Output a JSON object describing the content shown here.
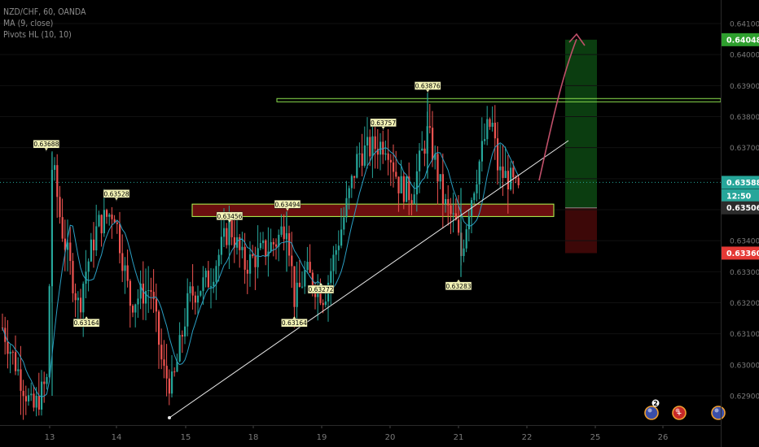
{
  "header": {
    "symbol_line": "NZD/CHF, 60, OANDA",
    "indicator_ma": "MA (9, close)",
    "indicator_pivots": "Pivots HL (10, 10)"
  },
  "colors": {
    "background": "#000000",
    "bull_candle": "#26a69a",
    "bear_candle": "#ef5350",
    "ma_line": "#2a9fc4",
    "trendline": "#e6e6e6",
    "resistance_line": "#8be04e",
    "zone_fill": "#6b0f0f",
    "zone_border": "#b6ff52",
    "target_zone": "#0b3d10",
    "stop_zone": "#3d0808",
    "arrow": "#c0506a",
    "current_price_tag": "#26a69a",
    "target_price_tag": "#2e9f2e",
    "stop_price_tag": "#e53935",
    "entry_price_tag": "#2c2c2c"
  },
  "chart_data": {
    "type": "candlestick",
    "title": "NZD/CHF, 60, OANDA",
    "y_axis": {
      "range": [
        0.6283,
        0.6414
      ],
      "ticks": [
        0.641,
        0.64,
        0.639,
        0.638,
        0.637,
        0.636,
        0.635,
        0.634,
        0.633,
        0.632,
        0.631,
        0.63,
        0.629
      ],
      "tick_labels": [
        "0.64100",
        "0.64000",
        "0.63900",
        "0.63800",
        "0.63700",
        "0.63600",
        "0.63500",
        "0.63400",
        "0.63300",
        "0.63200",
        "0.63100",
        "0.63000",
        "0.62900"
      ]
    },
    "x_axis": {
      "ticks": [
        "13",
        "14",
        "15",
        "18",
        "19",
        "20",
        "21",
        "22",
        "25",
        "26"
      ]
    },
    "price_tags": [
      {
        "name": "target",
        "price": 0.64048,
        "label": "0.64048",
        "color": "#2e9f2e"
      },
      {
        "name": "current",
        "price": 0.63588,
        "label": "0.63588",
        "color": "#26a69a"
      },
      {
        "name": "countdown",
        "price": 0.63545,
        "label": "12:50",
        "color": "#26a69a"
      },
      {
        "name": "entry",
        "price": 0.63506,
        "label": "0.63506",
        "color": "#2c2c2c"
      },
      {
        "name": "stop",
        "price": 0.6336,
        "label": "0.63360",
        "color": "#e53935"
      }
    ],
    "pivot_labels": [
      {
        "label": "0.63688",
        "price": 0.63688,
        "kind": "high",
        "day": 12.95
      },
      {
        "label": "0.63164",
        "price": 0.63164,
        "kind": "low",
        "day": 13.55
      },
      {
        "label": "0.63528",
        "price": 0.63528,
        "kind": "high",
        "day": 14.0
      },
      {
        "label": "0.63456",
        "price": 0.63456,
        "kind": "high",
        "day": 15.65
      },
      {
        "label": "0.63272",
        "price": 0.63272,
        "kind": "low",
        "day": 17.0
      },
      {
        "label": "0.63494",
        "price": 0.63494,
        "kind": "high",
        "day": 18.5
      },
      {
        "label": "0.63164",
        "price": 0.63164,
        "kind": "low",
        "day": 18.6
      },
      {
        "label": "0.63757",
        "price": 0.63757,
        "kind": "high",
        "day": 19.9
      },
      {
        "label": "0.63876",
        "price": 0.63876,
        "kind": "high",
        "day": 20.55
      },
      {
        "label": "0.63283",
        "price": 0.63283,
        "kind": "low",
        "day": 21.0
      }
    ],
    "annotations": {
      "resistance_price": 0.63853,
      "zone_prices": [
        0.63478,
        0.63518
      ],
      "target_price": 0.64048,
      "entry_price": 0.63506,
      "stop_price": 0.6336
    },
    "markers": [
      {
        "label": "2",
        "kind": "event",
        "color": "#3a4ea8"
      },
      {
        "label": "+",
        "kind": "event",
        "color": "#c62828"
      },
      {
        "label": "",
        "kind": "event",
        "color": "#3a4ea8"
      }
    ]
  }
}
